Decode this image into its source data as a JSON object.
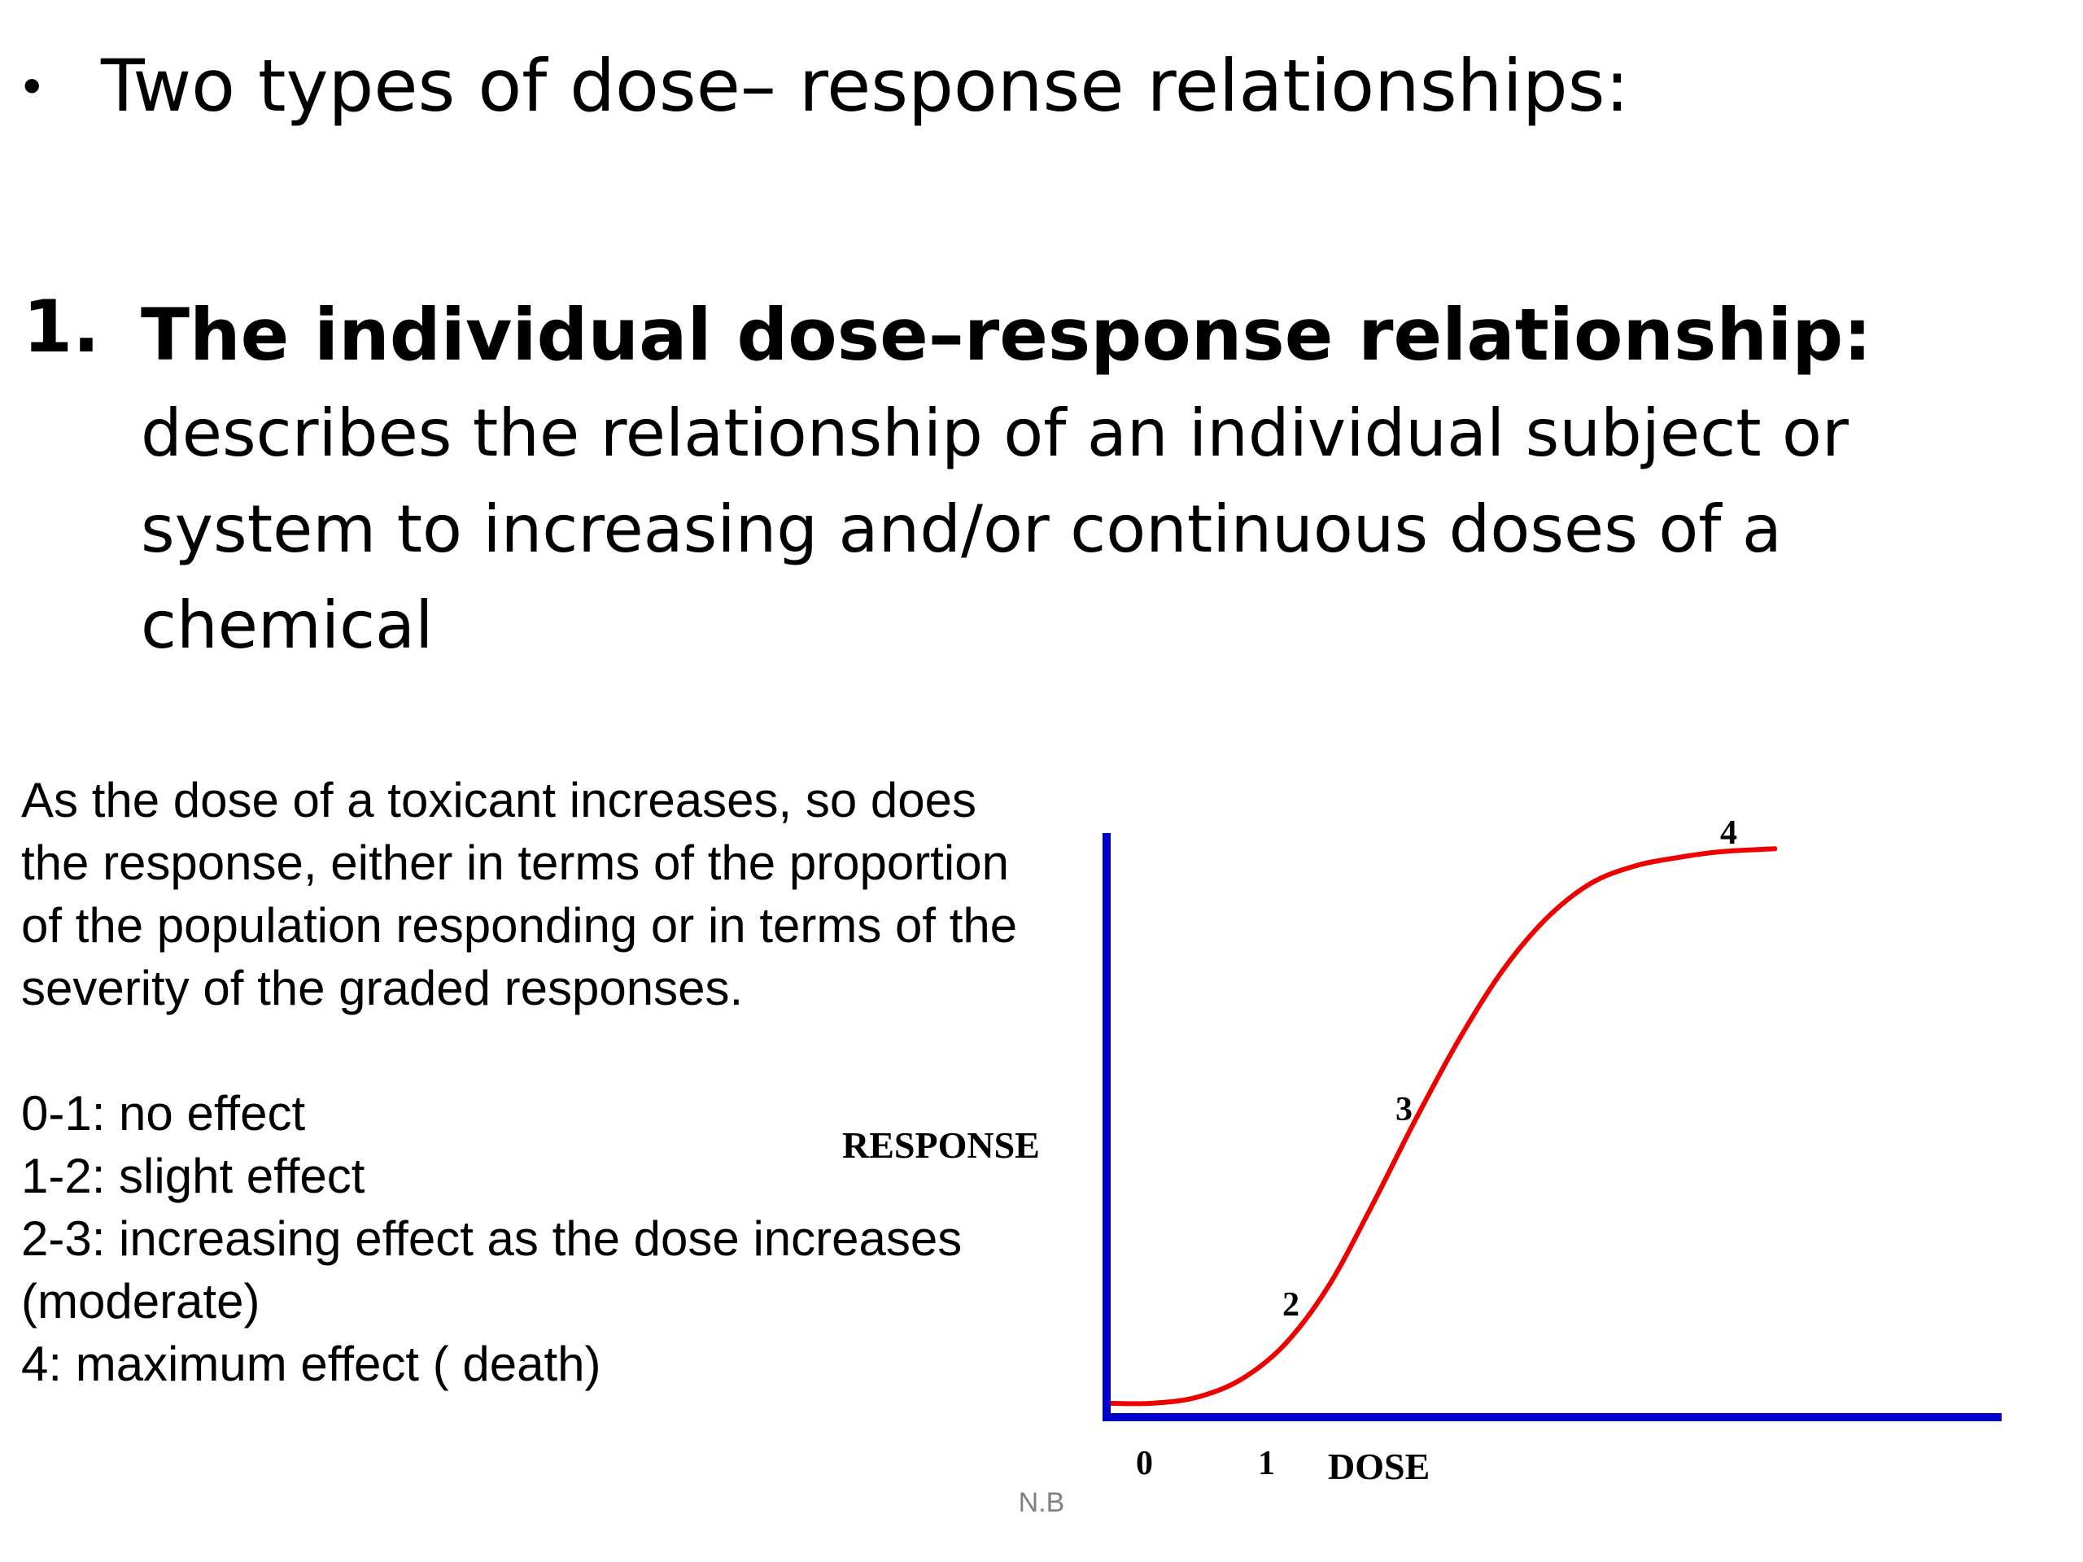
{
  "slide": {
    "bullet": {
      "glyph": "•",
      "text": "Two types of dose– response relationships:"
    },
    "item": {
      "number": "1.",
      "heading": "The individual dose–response relationship:",
      "description": "describes the relationship of an individual subject or system to increasing and/or continuous doses of a chemical"
    },
    "explanation": "As the dose of a toxicant increases, so does the response, either in terms of the proportion of the population responding or in terms of the severity of the graded responses.",
    "legend": [
      "0-1: no effect",
      "1-2: slight effect",
      "2-3: increasing effect as the dose increases (moderate)",
      "4: maximum effect ( death)"
    ],
    "footer": "N.B"
  },
  "chart_data": {
    "type": "line",
    "xlabel": "DOSE",
    "ylabel": "RESPONSE",
    "x_tick_labels": [
      "0",
      "1"
    ],
    "point_labels": [
      "2",
      "3",
      "4"
    ],
    "xlim": [
      0,
      10
    ],
    "ylim": [
      0,
      1
    ],
    "series": [
      {
        "x": [
          0,
          0.5,
          1.0,
          1.5,
          2.0,
          2.5,
          3.0,
          3.5,
          4.0,
          4.5,
          5.0,
          5.5,
          6.0,
          6.5,
          7.0,
          7.6
        ],
        "y": [
          0.01,
          0.01,
          0.02,
          0.05,
          0.11,
          0.21,
          0.35,
          0.5,
          0.64,
          0.76,
          0.85,
          0.91,
          0.94,
          0.955,
          0.965,
          0.97
        ]
      }
    ],
    "colors": {
      "axes": "#0000cc",
      "curve": "#ee0000"
    },
    "grid": false
  }
}
